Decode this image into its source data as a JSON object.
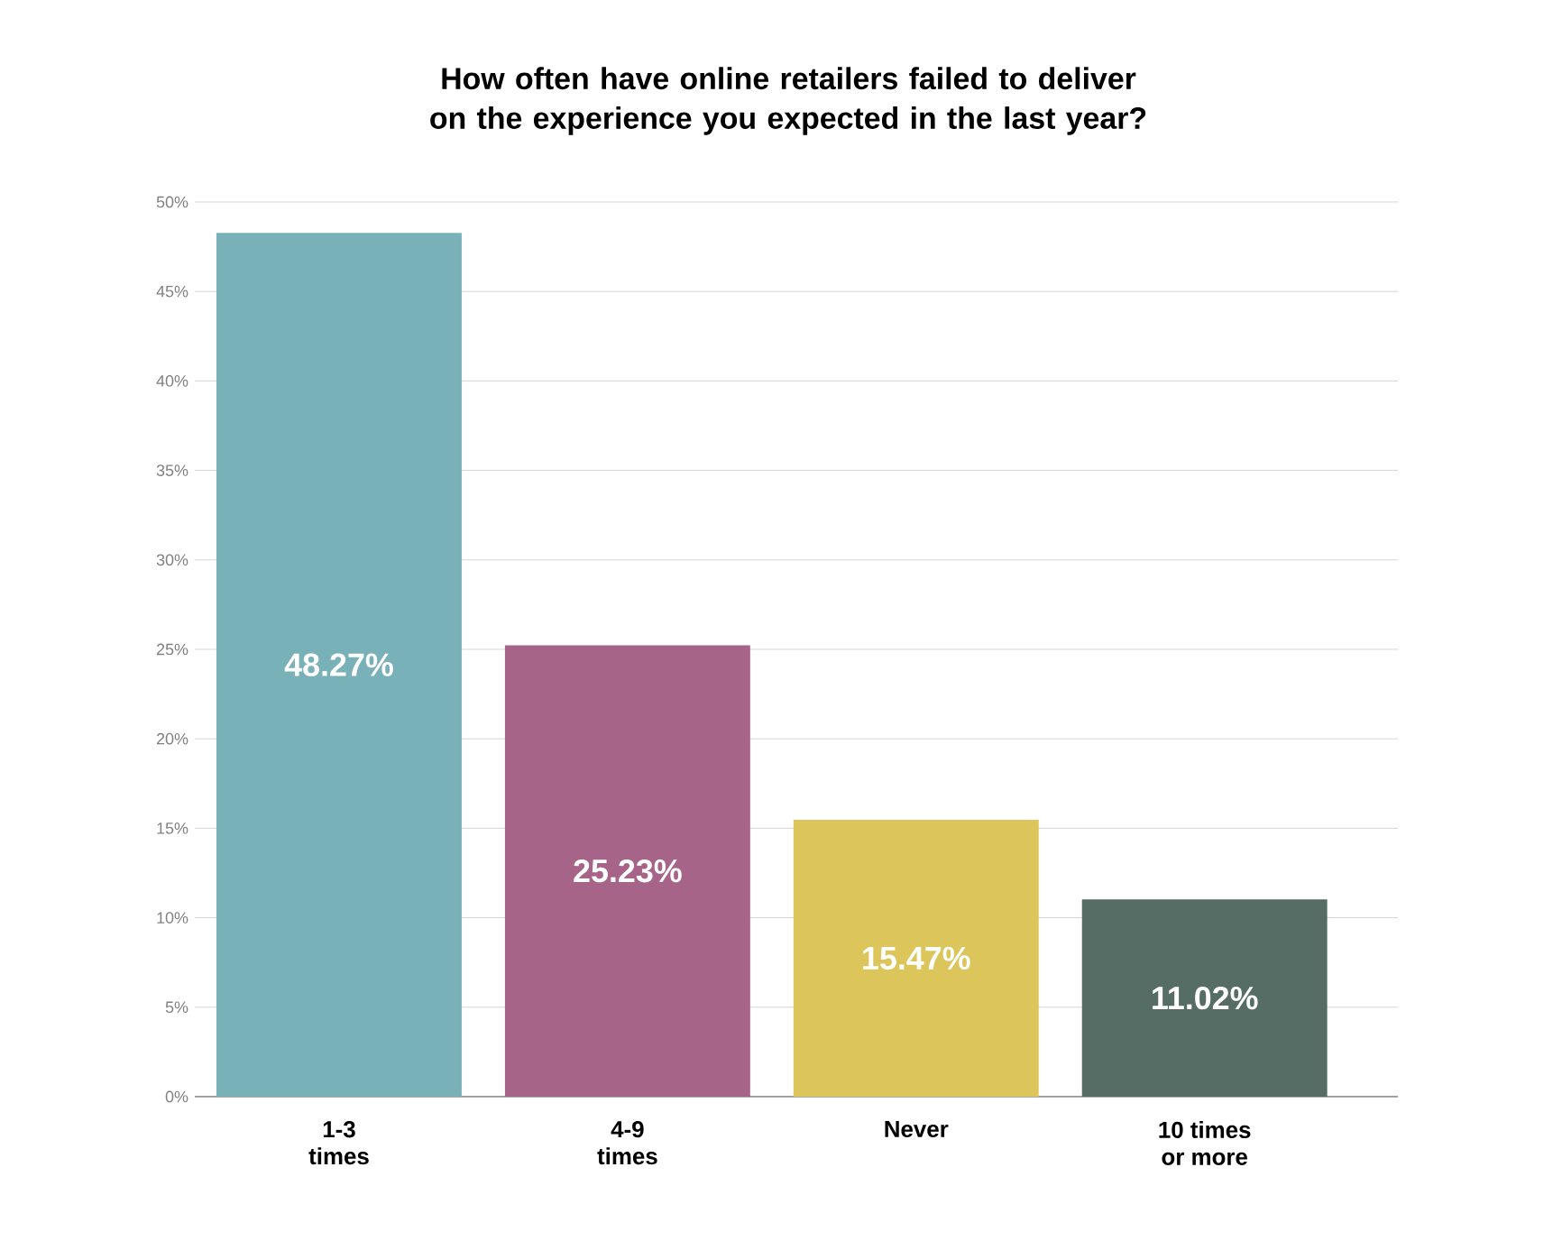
{
  "chart_data": {
    "type": "bar",
    "title": "How often have online retailers failed to deliver on the experience you expected in the last year?",
    "categories": [
      "1-3 times",
      "4-9 times",
      "Never",
      "10 times or more"
    ],
    "values": [
      48.27,
      25.23,
      15.47,
      11.02
    ],
    "colors": [
      "#79b1b9",
      "#a66488",
      "#dcc55a",
      "#566d66"
    ],
    "value_labels": [
      "48.27%",
      "25.23%",
      "15.47%",
      "11.02%"
    ],
    "ylim": [
      0,
      50
    ],
    "yticks": [
      {
        "value": 0,
        "label": "0%"
      },
      {
        "value": 5,
        "label": "5%"
      },
      {
        "value": 10,
        "label": "10%"
      },
      {
        "value": 15,
        "label": "15%"
      },
      {
        "value": 20,
        "label": "20%"
      },
      {
        "value": 25,
        "label": "25%"
      },
      {
        "value": 30,
        "label": "30%"
      },
      {
        "value": 35,
        "label": "35%"
      },
      {
        "value": 40,
        "label": "40%"
      },
      {
        "value": 45,
        "label": "45%"
      },
      {
        "value": 50,
        "label": "50%"
      }
    ],
    "grid": "y"
  }
}
